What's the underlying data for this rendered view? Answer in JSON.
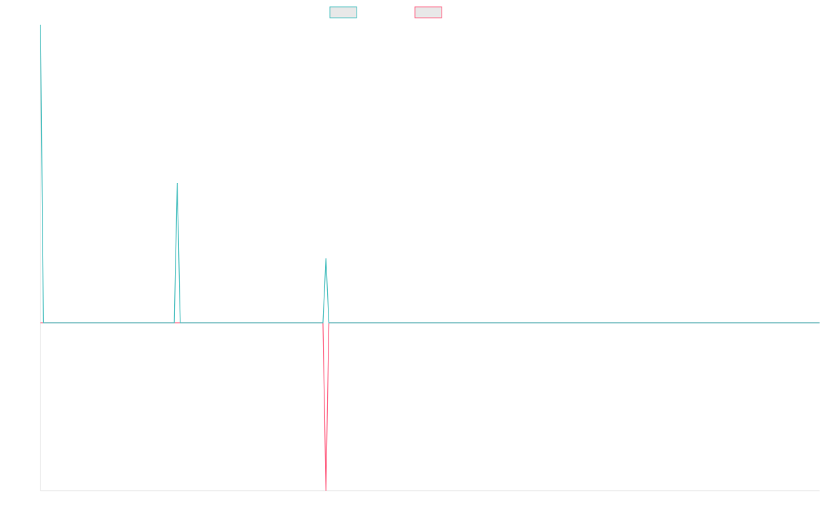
{
  "chart_data": {
    "type": "line",
    "x": [
      0,
      1,
      9,
      45,
      46,
      47,
      60,
      64,
      95,
      96,
      97,
      104,
      262
    ],
    "series": [
      {
        "color": "#4bc0c0",
        "values": [
          435,
          0,
          0,
          0,
          204,
          0,
          0,
          0,
          0,
          94,
          0,
          0,
          0
        ]
      },
      {
        "color": "#ff6384",
        "values": [
          0,
          0,
          0,
          0,
          0,
          0,
          0,
          0,
          0,
          -245,
          0,
          0,
          0
        ]
      }
    ],
    "xlim": [
      0,
      262
    ],
    "ylim": [
      -245,
      435
    ]
  }
}
